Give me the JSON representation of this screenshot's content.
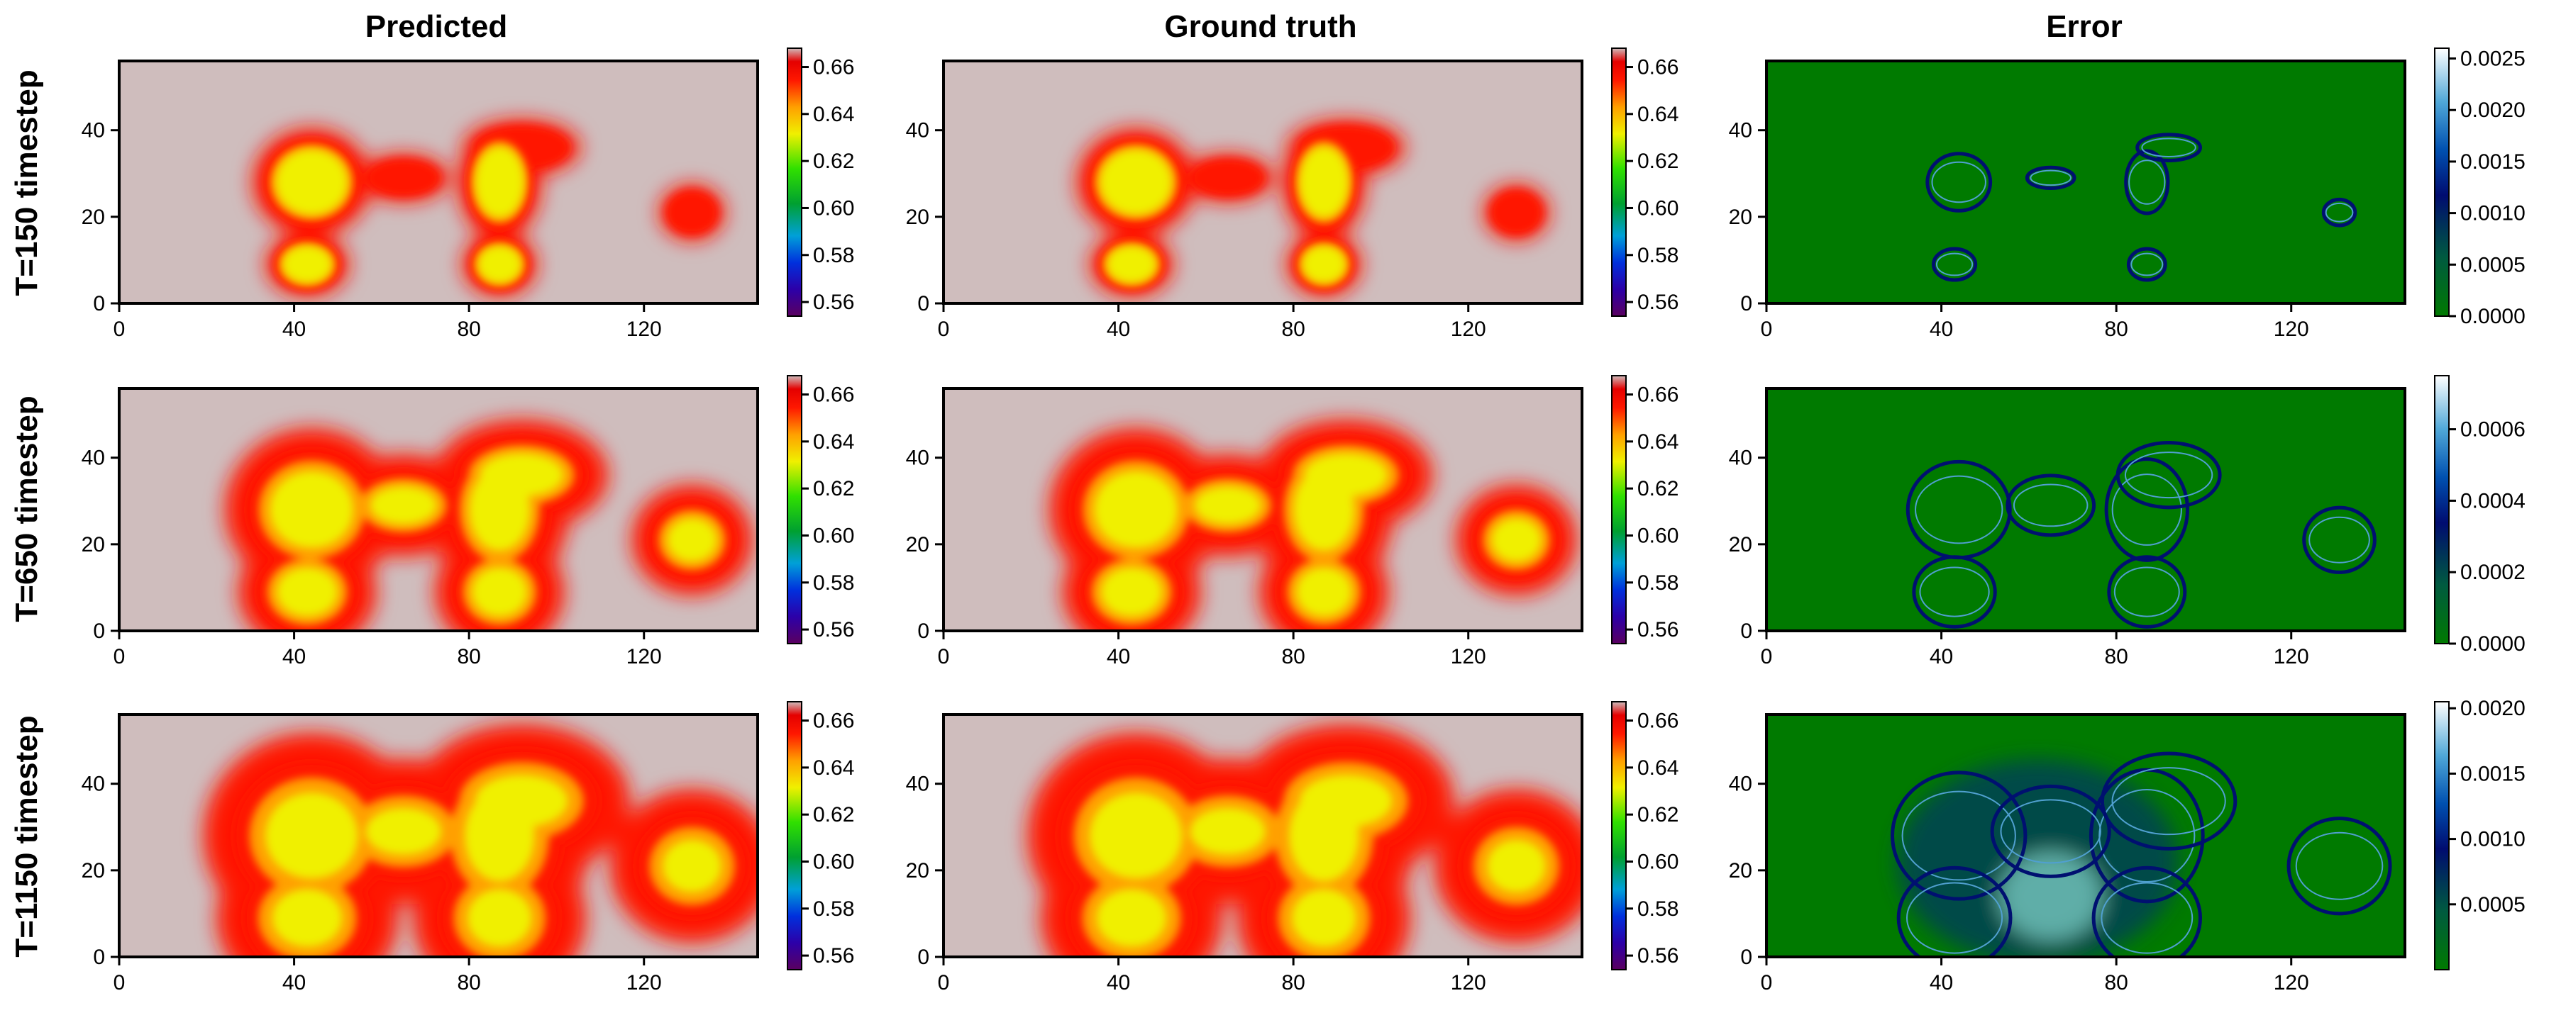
{
  "figure": {
    "column_titles": [
      "Predicted",
      "Ground truth",
      "Error"
    ],
    "row_titles": [
      "T=150 timestep",
      "T=650 timestep",
      "T=1150 timestep"
    ]
  },
  "chart_data": {
    "type": "heatmap",
    "xlim": [
      0,
      146
    ],
    "ylim": [
      0,
      56
    ],
    "x_ticks": [
      0,
      40,
      80,
      120
    ],
    "y_ticks": [
      0,
      20,
      40
    ],
    "colormaps": {
      "field": "nipy_spectral (purple-blue-cyan-green-yellow-orange-red-pinkgrey)",
      "error": "ocean (green-darkblue-lightblue-white)"
    },
    "field_colorbar": {
      "ticks": [
        "0.56",
        "0.58",
        "0.60",
        "0.62",
        "0.64",
        "0.66"
      ],
      "range": [
        0.554,
        0.668
      ],
      "background_value": 0.668
    },
    "panels": [
      {
        "row": 0,
        "col": 0,
        "kind": "field",
        "timestep": 150
      },
      {
        "row": 0,
        "col": 1,
        "kind": "field",
        "timestep": 150
      },
      {
        "row": 0,
        "col": 2,
        "kind": "error",
        "timestep": 150,
        "colorbar_ticks": [
          "0.0000",
          "0.0005",
          "0.0010",
          "0.0015",
          "0.0020",
          "0.0025"
        ],
        "range": [
          0,
          0.0026
        ]
      },
      {
        "row": 1,
        "col": 0,
        "kind": "field",
        "timestep": 650
      },
      {
        "row": 1,
        "col": 1,
        "kind": "field",
        "timestep": 650
      },
      {
        "row": 1,
        "col": 2,
        "kind": "error",
        "timestep": 650,
        "colorbar_ticks": [
          "0.0000",
          "0.0002",
          "0.0004",
          "0.0006"
        ],
        "range": [
          0,
          0.00075
        ]
      },
      {
        "row": 2,
        "col": 0,
        "kind": "field",
        "timestep": 1150
      },
      {
        "row": 2,
        "col": 1,
        "kind": "field",
        "timestep": 1150
      },
      {
        "row": 2,
        "col": 2,
        "kind": "error",
        "timestep": 1150,
        "colorbar_ticks": [
          "0.0005",
          "0.0010",
          "0.0015",
          "0.0020"
        ],
        "range": [
          0,
          0.00205
        ]
      }
    ],
    "sources": [
      {
        "x": 44,
        "y": 28,
        "rx": 12,
        "ry": 11
      },
      {
        "x": 43,
        "y": 9,
        "rx": 8,
        "ry": 6
      },
      {
        "x": 87,
        "y": 28,
        "rx": 8,
        "ry": 12
      },
      {
        "x": 87,
        "y": 9,
        "rx": 7,
        "ry": 6
      },
      {
        "x": 92,
        "y": 36,
        "rx": 12,
        "ry": 5
      },
      {
        "x": 65,
        "y": 29,
        "rx": 9,
        "ry": 4
      },
      {
        "x": 131,
        "y": 21,
        "rx": 6,
        "ry": 5
      }
    ],
    "plume_growth": [
      1.0,
      2.4,
      3.5
    ]
  }
}
